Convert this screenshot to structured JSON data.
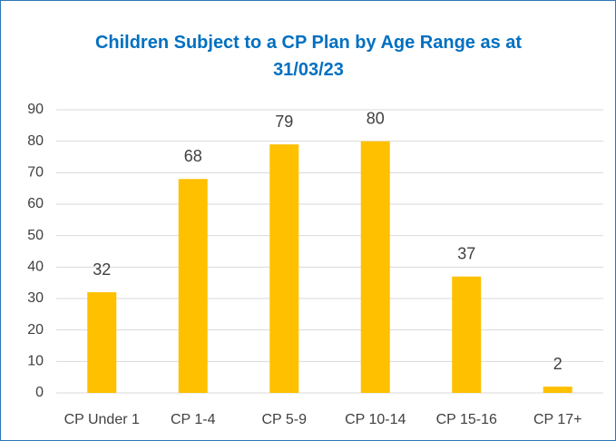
{
  "chart_data": {
    "type": "bar",
    "title": "Children Subject to a CP Plan by Age Range as at 31/03/23",
    "categories": [
      "CP Under 1",
      "CP 1-4",
      "CP 5-9",
      "CP 10-14",
      "CP 15-16",
      "CP 17+"
    ],
    "values": [
      32,
      68,
      79,
      80,
      37,
      2
    ],
    "color": "#ffc000",
    "ylim": [
      0,
      90
    ],
    "yticks": [
      0,
      10,
      20,
      30,
      40,
      50,
      60,
      70,
      80,
      90
    ],
    "grid": true
  }
}
